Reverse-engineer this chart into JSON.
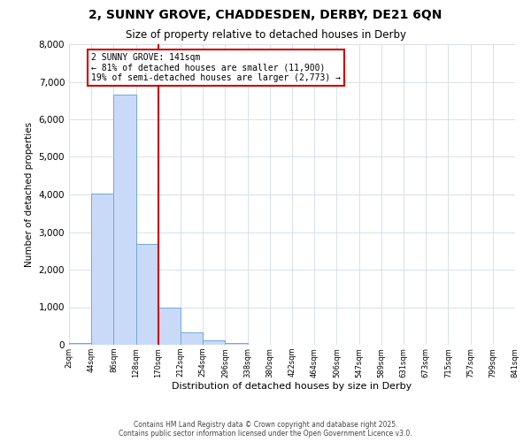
{
  "title": "2, SUNNY GROVE, CHADDESDEN, DERBY, DE21 6QN",
  "subtitle": "Size of property relative to detached houses in Derby",
  "xlabel": "Distribution of detached houses by size in Derby",
  "ylabel": "Number of detached properties",
  "bin_labels": [
    "2sqm",
    "44sqm",
    "86sqm",
    "128sqm",
    "170sqm",
    "212sqm",
    "254sqm",
    "296sqm",
    "338sqm",
    "380sqm",
    "422sqm",
    "464sqm",
    "506sqm",
    "547sqm",
    "589sqm",
    "631sqm",
    "673sqm",
    "715sqm",
    "757sqm",
    "799sqm",
    "841sqm"
  ],
  "bar_values": [
    50,
    4030,
    6650,
    2680,
    1000,
    330,
    120,
    50,
    0,
    0,
    0,
    0,
    0,
    0,
    0,
    0,
    0,
    0,
    0,
    0
  ],
  "bar_color": "#c9daf8",
  "bar_edge_color": "#6fa8dc",
  "vline_x": 4,
  "vline_color": "#cc0000",
  "ylim": [
    0,
    8000
  ],
  "yticks": [
    0,
    1000,
    2000,
    3000,
    4000,
    5000,
    6000,
    7000,
    8000
  ],
  "annotation_title": "2 SUNNY GROVE: 141sqm",
  "annotation_line1": "← 81% of detached houses are smaller (11,900)",
  "annotation_line2": "19% of semi-detached houses are larger (2,773) →",
  "annotation_box_color": "#ffffff",
  "annotation_box_edge": "#cc0000",
  "footer_line1": "Contains HM Land Registry data © Crown copyright and database right 2025.",
  "footer_line2": "Contains public sector information licensed under the Open Government Licence v3.0.",
  "background_color": "#ffffff",
  "grid_color": "#d0dce8"
}
